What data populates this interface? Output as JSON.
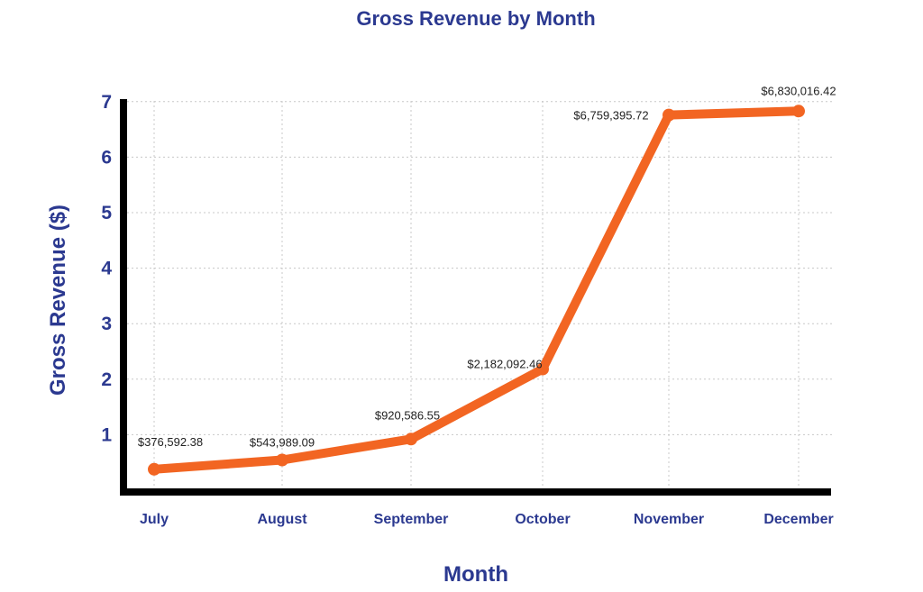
{
  "chart_data": {
    "type": "line",
    "title": "Gross Revenue by Month",
    "xlabel": "Month",
    "ylabel": "Gross Revenue ($)",
    "categories": [
      "July",
      "August",
      "September",
      "October",
      "November",
      "December"
    ],
    "values": [
      376592.38,
      543989.09,
      920586.55,
      2182092.46,
      6759395.72,
      6830016.42
    ],
    "value_labels": [
      "$376,592.38",
      "$543,989.09",
      "$920,586.55",
      "$2,182,092.46",
      "$6,759,395.72",
      "$6,830,016.42"
    ],
    "y_unit": 1000000,
    "y_ticks": [
      1,
      2,
      3,
      4,
      5,
      6,
      7
    ],
    "ylim": [
      0,
      7
    ],
    "grid": true,
    "legend": "none"
  },
  "colors": {
    "title": "#2b3990",
    "line": "#f26522",
    "axis": "#000000",
    "grid": "#c8c8c8"
  }
}
